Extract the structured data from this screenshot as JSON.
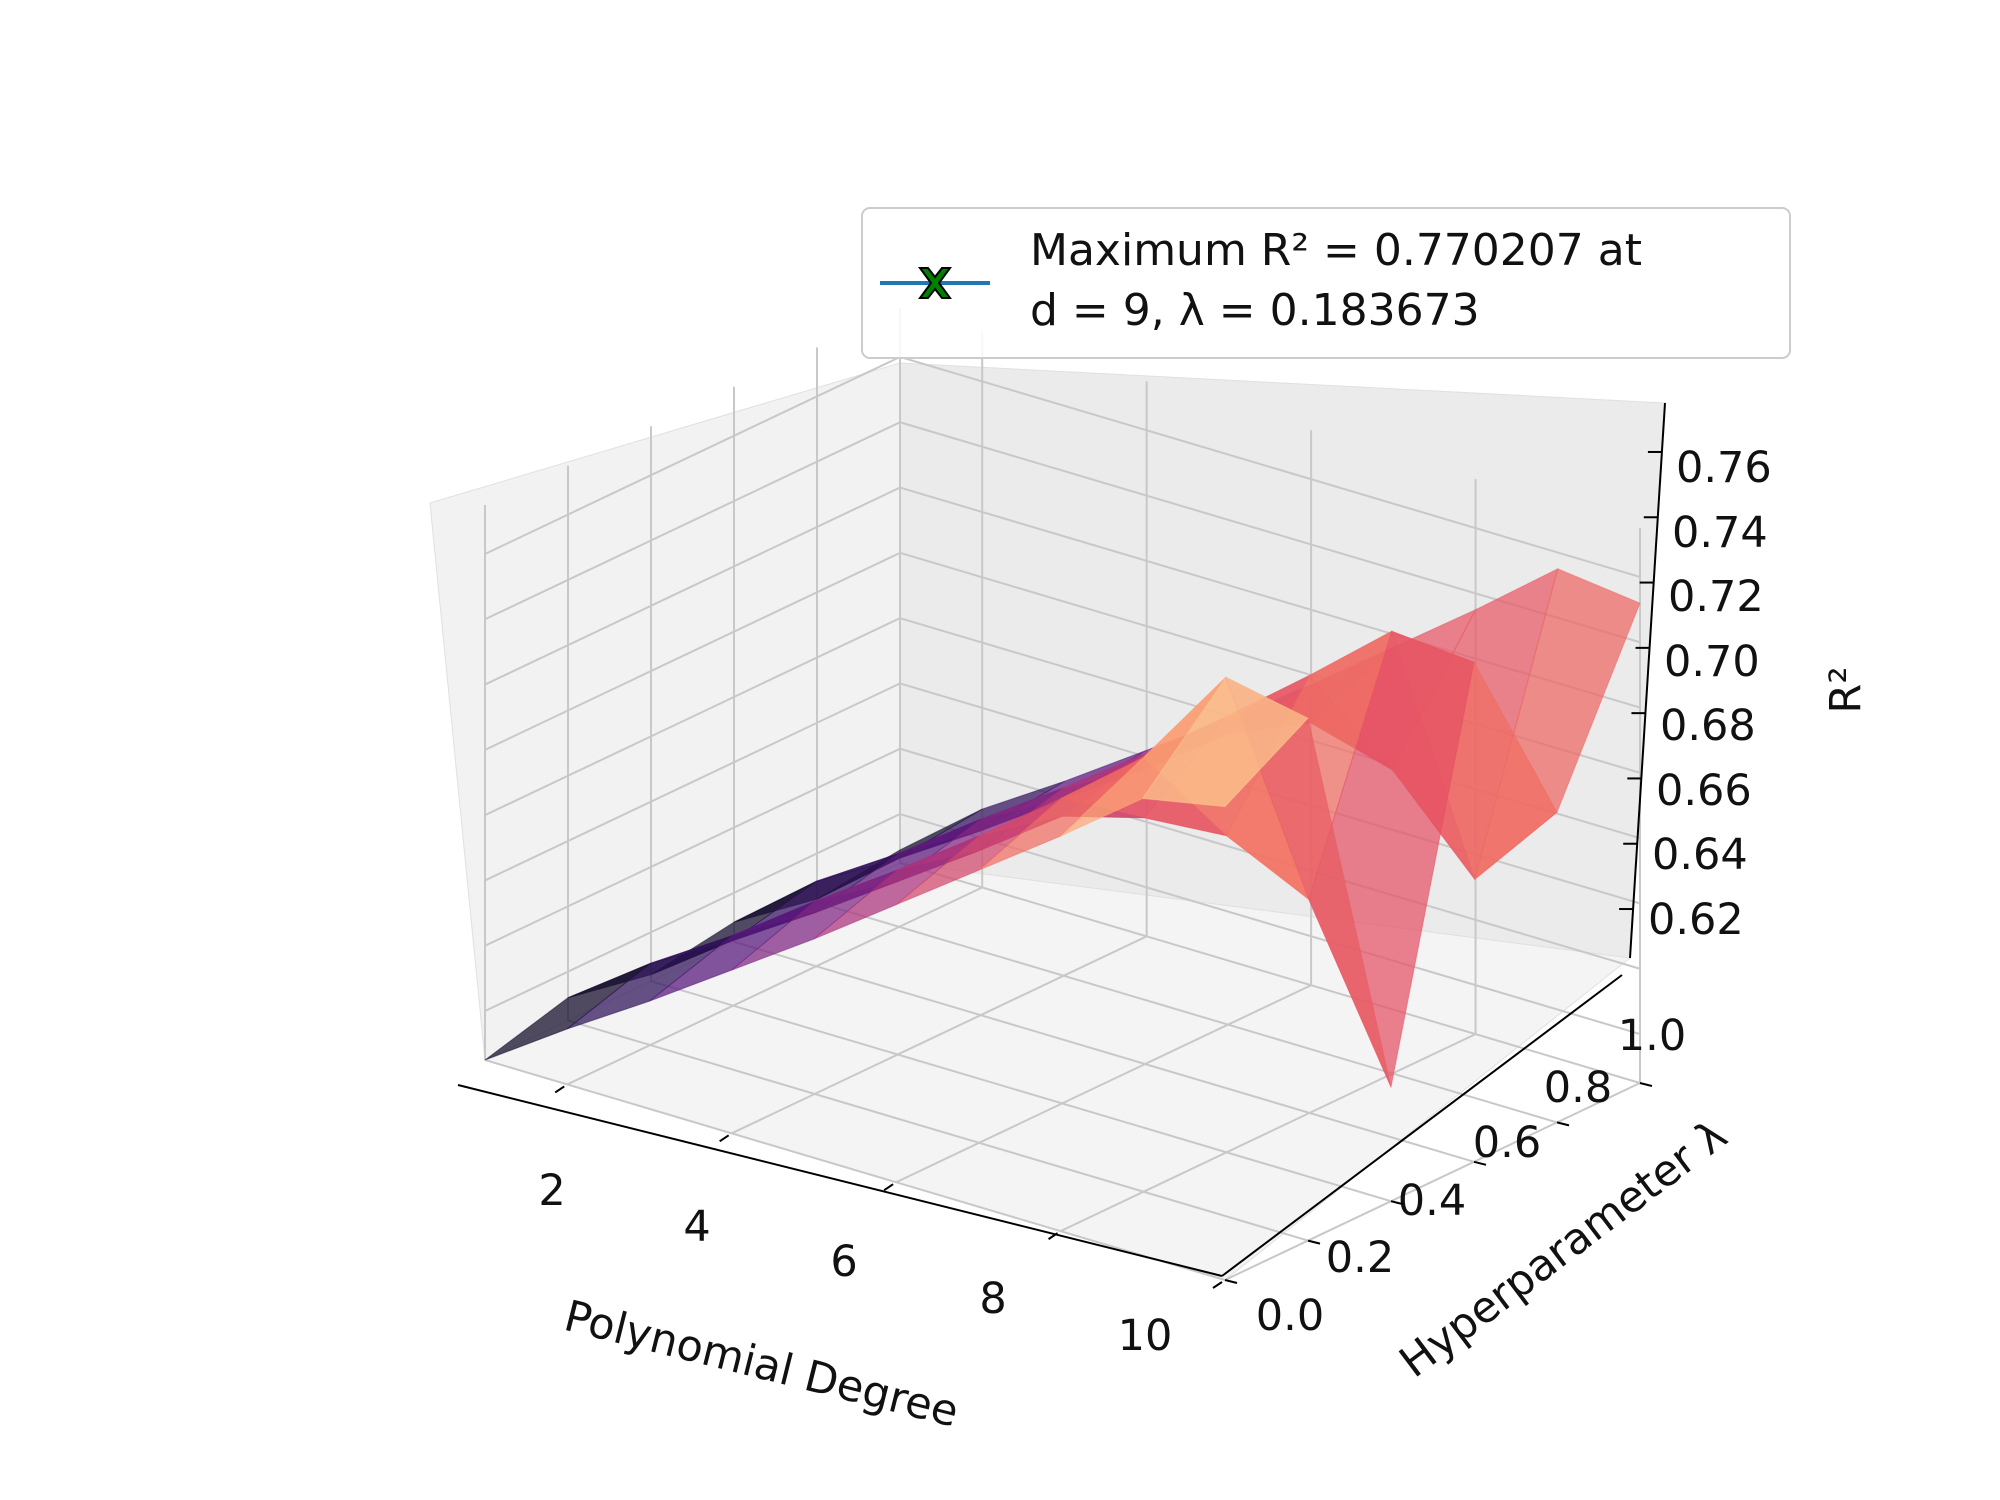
{
  "chart_data": {
    "type": "surface",
    "x_axis": {
      "label": "Polynomial Degree",
      "ticks": [
        2,
        4,
        6,
        8,
        10
      ],
      "range": [
        1,
        10
      ]
    },
    "y_axis": {
      "label": "Hyperparameter λ",
      "ticks": [
        "0.0",
        "0.2",
        "0.4",
        "0.6",
        "0.8",
        "1.0"
      ],
      "range": [
        0,
        1
      ]
    },
    "z_axis": {
      "label": "R²",
      "ticks": [
        "0.62",
        "0.64",
        "0.66",
        "0.68",
        "0.70",
        "0.72",
        "0.74",
        "0.76"
      ],
      "range": [
        0.605,
        0.775
      ]
    },
    "colormap": "magma",
    "grid": true,
    "legend": {
      "placement": "top-right",
      "entry_line1": "Maximum R² = 0.770207 at",
      "entry_line2": "d = 9, λ = 0.183673",
      "marker": "green-x",
      "line_color": "#1f77b4",
      "marker_color": "#008000"
    },
    "max_point": {
      "degree": 9,
      "lambda": 0.183673,
      "r2": 0.770207
    },
    "surface_series": [
      {
        "degree": 1,
        "lambda_samples": [
          0.0,
          0.2,
          0.4,
          0.6,
          0.8,
          1.0
        ],
        "r2_samples": [
          0.605,
          0.612,
          0.607,
          0.611,
          0.606,
          0.609
        ]
      },
      {
        "degree": 2,
        "lambda_samples": [
          0.0,
          0.2,
          0.4,
          0.6,
          0.8,
          1.0
        ],
        "r2_samples": [
          0.622,
          0.63,
          0.625,
          0.631,
          0.626,
          0.629
        ]
      },
      {
        "degree": 3,
        "lambda_samples": [
          0.0,
          0.2,
          0.4,
          0.6,
          0.8,
          1.0
        ],
        "r2_samples": [
          0.638,
          0.646,
          0.641,
          0.647,
          0.642,
          0.645
        ]
      },
      {
        "degree": 4,
        "lambda_samples": [
          0.0,
          0.2,
          0.4,
          0.6,
          0.8,
          1.0
        ],
        "r2_samples": [
          0.655,
          0.664,
          0.658,
          0.665,
          0.659,
          0.662
        ]
      },
      {
        "degree": 5,
        "lambda_samples": [
          0.0,
          0.2,
          0.4,
          0.6,
          0.8,
          1.0
        ],
        "r2_samples": [
          0.672,
          0.681,
          0.675,
          0.682,
          0.676,
          0.679
        ]
      },
      {
        "degree": 6,
        "lambda_samples": [
          0.0,
          0.2,
          0.4,
          0.6,
          0.8,
          1.0
        ],
        "r2_samples": [
          0.69,
          0.699,
          0.693,
          0.7,
          0.694,
          0.697
        ]
      },
      {
        "degree": 7,
        "lambda_samples": [
          0.0,
          0.2,
          0.4,
          0.6,
          0.8,
          1.0
        ],
        "r2_samples": [
          0.708,
          0.718,
          0.7,
          0.719,
          0.705,
          0.716
        ]
      },
      {
        "degree": 8,
        "lambda_samples": [
          0.0,
          0.2,
          0.4,
          0.6,
          0.8,
          1.0
        ],
        "r2_samples": [
          0.726,
          0.738,
          0.702,
          0.739,
          0.698,
          0.735
        ]
      },
      {
        "degree": 9,
        "lambda_samples": [
          0.0,
          0.2,
          0.4,
          0.6,
          0.8,
          1.0
        ],
        "r2_samples": [
          0.745,
          0.77,
          0.69,
          0.76,
          0.672,
          0.755
        ]
      },
      {
        "degree": 10,
        "lambda_samples": [
          0.0,
          0.2,
          0.4,
          0.6,
          0.8,
          1.0
        ],
        "r2_samples": [
          0.75,
          0.765,
          0.64,
          0.758,
          0.7,
          0.752
        ]
      }
    ]
  }
}
